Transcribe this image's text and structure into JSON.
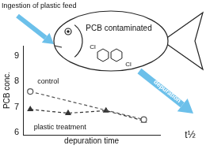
{
  "chart_data": {
    "type": "scatter",
    "x_label": "depuration time",
    "y_label": "PCB conc.",
    "series": [
      {
        "name": "control",
        "color": "#555555",
        "marker": "circle",
        "line_style": "dashed",
        "x": [
          0,
          63
        ],
        "values": [
          7.6,
          6.5
        ]
      },
      {
        "name": "plastic treatment",
        "color": "#333333",
        "marker": "triangle",
        "line_style": "dashed",
        "x": [
          0,
          21,
          42,
          63
        ],
        "values": [
          6.9,
          6.75,
          6.85,
          6.45
        ]
      }
    ],
    "xlim": [
      -4,
      72
    ],
    "ylim": [
      5.9,
      9.4
    ],
    "yticks": [
      6,
      7,
      8,
      9
    ],
    "tick_labels": "y",
    "grid": false,
    "annotations": [
      "Ingestion of plastic feed",
      "PCB contaminated",
      "Cl",
      "Cl",
      "depuration",
      "t½"
    ]
  }
}
